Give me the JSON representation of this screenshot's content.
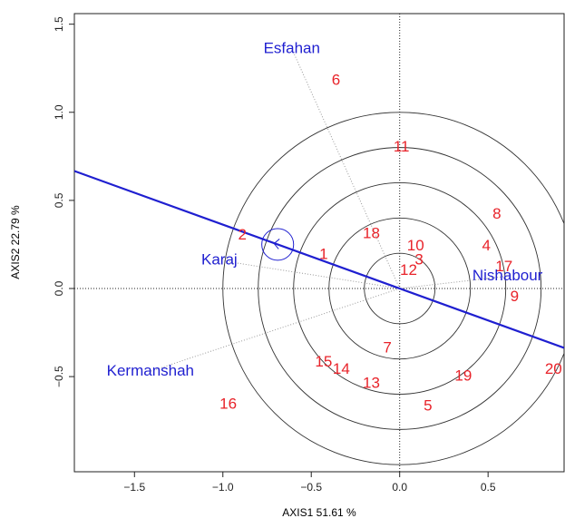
{
  "chart_data": {
    "type": "biplot",
    "xlabel": "AXIS1 51.61 %",
    "ylabel": "AXIS2 22.79 %",
    "xlim": [
      -1.84,
      0.93
    ],
    "ylim": [
      -1.04,
      1.56
    ],
    "xticks": [
      {
        "value": -1.5,
        "label": "−1.5"
      },
      {
        "value": -1.0,
        "label": "−1.0"
      },
      {
        "value": -0.5,
        "label": "−0.5"
      },
      {
        "value": 0.0,
        "label": "0.0"
      },
      0.5
    ],
    "yticks": [
      {
        "value": -0.5,
        "label": "−0.5"
      },
      {
        "value": 0.0,
        "label": "0.0"
      },
      0.5,
      {
        "value": 1.0,
        "label": "1.0"
      },
      1.5
    ],
    "circle_radii": [
      0.2,
      0.4,
      0.6,
      0.8,
      1.0
    ],
    "average_environment": {
      "x": -0.69,
      "y": 0.25,
      "r": 0.09
    },
    "genotype_color": "#e8232a",
    "environment_color": "#1f1fd0",
    "genotypes": [
      {
        "label": "6",
        "x": -0.36,
        "y": 1.18
      },
      {
        "label": "11",
        "x": 0.01,
        "y": 0.8
      },
      {
        "label": "8",
        "x": 0.55,
        "y": 0.42
      },
      {
        "label": "18",
        "x": -0.16,
        "y": 0.31
      },
      {
        "label": "10",
        "x": 0.09,
        "y": 0.24
      },
      {
        "label": "2",
        "x": -0.89,
        "y": 0.3
      },
      {
        "label": "4",
        "x": 0.49,
        "y": 0.24
      },
      {
        "label": "1",
        "x": -0.43,
        "y": 0.19
      },
      {
        "label": "3",
        "x": 0.11,
        "y": 0.16
      },
      {
        "label": "17",
        "x": 0.59,
        "y": 0.12
      },
      {
        "label": "12",
        "x": 0.05,
        "y": 0.1
      },
      {
        "label": "9",
        "x": 0.65,
        "y": -0.05
      },
      {
        "label": "7",
        "x": -0.07,
        "y": -0.34
      },
      {
        "label": "15",
        "x": -0.43,
        "y": -0.42
      },
      {
        "label": "14",
        "x": -0.33,
        "y": -0.46
      },
      {
        "label": "13",
        "x": -0.16,
        "y": -0.54
      },
      {
        "label": "19",
        "x": 0.36,
        "y": -0.5
      },
      {
        "label": "20",
        "x": 0.87,
        "y": -0.46
      },
      {
        "label": "5",
        "x": 0.16,
        "y": -0.67
      },
      {
        "label": "16",
        "x": -0.97,
        "y": -0.66
      }
    ],
    "environments": [
      {
        "label": "Esfahan",
        "x": -0.61,
        "y": 1.36
      },
      {
        "label": "Karaj",
        "x": -1.02,
        "y": 0.16
      },
      {
        "label": "Nishabour",
        "x": 0.61,
        "y": 0.07
      },
      {
        "label": "Kermanshah",
        "x": -1.41,
        "y": -0.47
      }
    ]
  }
}
